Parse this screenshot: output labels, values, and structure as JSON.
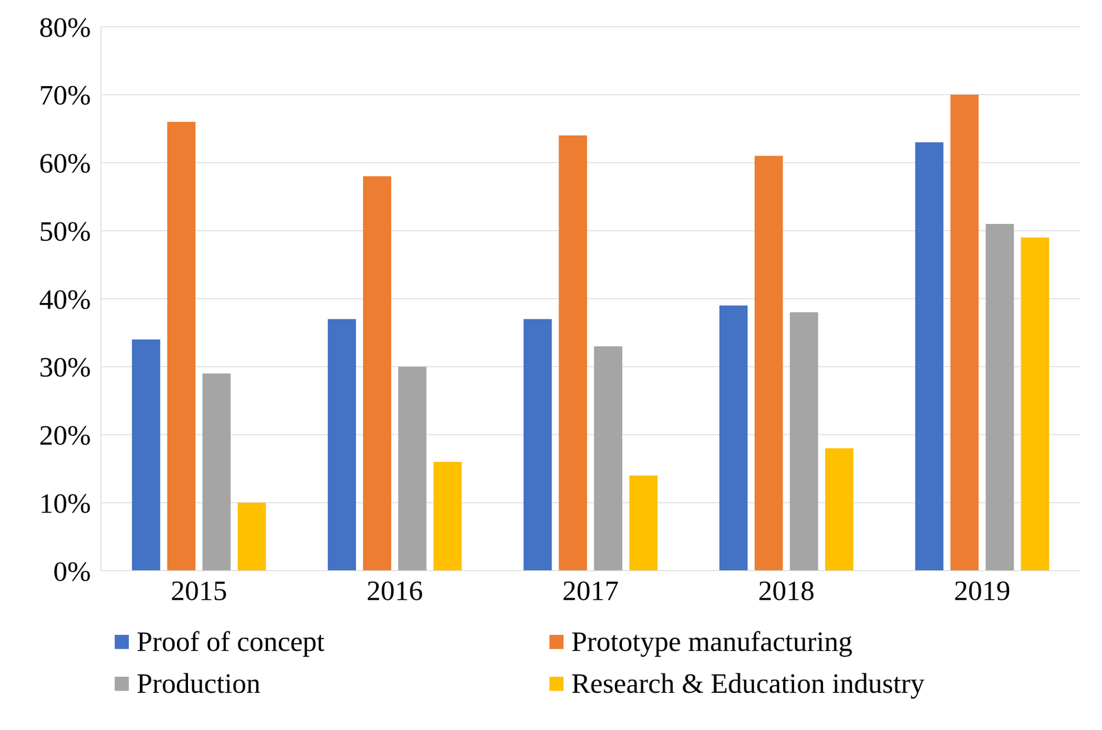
{
  "chart_data": {
    "type": "bar",
    "categories": [
      "2015",
      "2016",
      "2017",
      "2018",
      "2019"
    ],
    "series": [
      {
        "name": "Proof of concept",
        "color": "#4472c4",
        "values": [
          34,
          37,
          37,
          39,
          63
        ]
      },
      {
        "name": "Prototype manufacturing",
        "color": "#ed7d31",
        "values": [
          66,
          58,
          64,
          61,
          70
        ]
      },
      {
        "name": "Production",
        "color": "#a5a5a5",
        "values": [
          29,
          30,
          33,
          38,
          51
        ]
      },
      {
        "name": "Research & Education industry",
        "color": "#ffc000",
        "values": [
          10,
          16,
          14,
          18,
          49
        ]
      }
    ],
    "ylim": [
      0,
      80
    ],
    "yticks": [
      {
        "value": 0,
        "label": "0%"
      },
      {
        "value": 10,
        "label": "10%"
      },
      {
        "value": 20,
        "label": "20%"
      },
      {
        "value": 30,
        "label": "30%"
      },
      {
        "value": 40,
        "label": "40%"
      },
      {
        "value": 50,
        "label": "50%"
      },
      {
        "value": 60,
        "label": "60%"
      },
      {
        "value": 70,
        "label": "70%"
      },
      {
        "value": 80,
        "label": "80%"
      }
    ],
    "grid": true,
    "legend": "bottom"
  }
}
